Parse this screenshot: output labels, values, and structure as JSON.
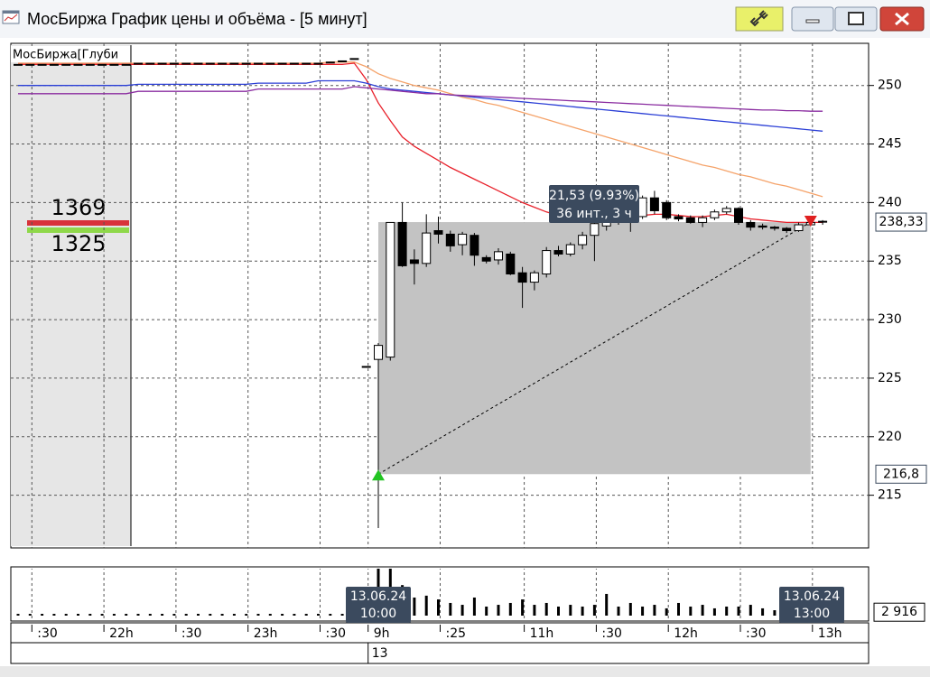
{
  "window": {
    "title": "МосБиржа График цены и объёма - [5 минут]"
  },
  "depth": {
    "label": "МосБиржа[Глуби",
    "ask": "1369",
    "bid": "1325"
  },
  "measure": {
    "change_label": "21,53 (9.93%)",
    "span_label": "36 инт., 3 ч",
    "start": {
      "date": "13.06.24",
      "time": "10:00"
    },
    "end": {
      "date": "13.06.24",
      "time": "13:00"
    }
  },
  "chart_data": {
    "type": "candlestick",
    "categories": [
      null,
      ":30",
      null,
      null,
      null,
      null,
      null,
      "22h",
      null,
      null,
      null,
      null,
      null,
      ":30",
      null,
      null,
      null,
      null,
      null,
      "23h",
      null,
      null,
      null,
      null,
      null,
      ":30",
      null,
      null,
      null,
      "9h",
      null,
      null,
      null,
      null,
      null,
      ":25",
      null,
      null,
      null,
      null,
      null,
      null,
      "11h",
      null,
      null,
      null,
      null,
      null,
      ":30",
      null,
      null,
      null,
      null,
      null,
      "12h",
      null,
      null,
      null,
      null,
      null,
      ":30",
      null,
      null,
      null,
      null,
      null,
      "13h",
      null
    ],
    "dates": [
      null,
      null,
      null,
      null,
      null,
      null,
      null,
      null,
      null,
      null,
      null,
      null,
      null,
      null,
      null,
      null,
      null,
      null,
      null,
      null,
      null,
      null,
      null,
      null,
      null,
      null,
      null,
      null,
      null,
      "13",
      null,
      null,
      null,
      null,
      null,
      null,
      null,
      null,
      null,
      null,
      null,
      null,
      null,
      null,
      null,
      null,
      null,
      null,
      null,
      null,
      null,
      null,
      null,
      null,
      null,
      null,
      null,
      null,
      null,
      null,
      null,
      null,
      null,
      null,
      null,
      null,
      null,
      null
    ],
    "open": [
      251.8,
      251.8,
      251.8,
      251.8,
      251.8,
      251.8,
      251.8,
      251.8,
      251.8,
      251.8,
      251.9,
      251.9,
      251.9,
      251.9,
      251.9,
      251.9,
      251.9,
      251.9,
      251.9,
      251.9,
      251.9,
      251.9,
      251.9,
      251.9,
      251.9,
      251.9,
      252.0,
      252.1,
      252.3,
      226.0,
      226.6,
      226.8,
      238.3,
      235.1,
      234.8,
      237.6,
      237.3,
      236.4,
      237.2,
      235.3,
      235.1,
      235.6,
      234.0,
      233.2,
      233.9,
      235.9,
      235.6,
      236.4,
      237.2,
      238.0,
      238.6,
      239.1,
      238.8,
      240.4,
      240.0,
      238.8,
      238.7,
      238.3,
      238.7,
      239.2,
      239.5,
      238.3,
      238.0,
      237.9,
      237.8,
      237.6,
      238.1,
      238.4
    ],
    "high": [
      251.8,
      251.8,
      251.8,
      251.8,
      251.8,
      251.8,
      251.8,
      251.8,
      251.8,
      251.8,
      251.9,
      251.9,
      251.9,
      251.9,
      251.9,
      251.9,
      251.9,
      251.9,
      251.9,
      251.9,
      251.9,
      251.9,
      251.9,
      251.9,
      251.9,
      251.9,
      252.0,
      252.1,
      252.3,
      226.0,
      228.0,
      238.3,
      240.0,
      236.0,
      239.0,
      238.8,
      237.6,
      237.5,
      237.4,
      235.5,
      236.1,
      235.8,
      234.5,
      234.2,
      236.2,
      236.3,
      236.6,
      237.5,
      238.5,
      238.9,
      239.4,
      239.5,
      240.6,
      241.0,
      240.2,
      239.0,
      238.9,
      238.9,
      239.4,
      239.7,
      239.6,
      238.5,
      238.2,
      238.0,
      237.9,
      238.3,
      238.5,
      238.5
    ],
    "low": [
      251.8,
      251.8,
      251.8,
      251.8,
      251.8,
      251.8,
      251.8,
      251.8,
      251.8,
      251.8,
      251.9,
      251.9,
      251.9,
      251.9,
      251.9,
      251.9,
      251.9,
      251.9,
      251.9,
      251.9,
      251.9,
      251.9,
      251.9,
      251.9,
      251.9,
      251.9,
      252.0,
      252.1,
      252.3,
      226.0,
      212.2,
      226.5,
      234.5,
      233.0,
      234.5,
      236.5,
      235.8,
      235.5,
      234.6,
      234.8,
      234.7,
      233.8,
      231.0,
      232.5,
      233.6,
      235.4,
      235.4,
      236.0,
      235.0,
      237.6,
      238.1,
      237.5,
      238.6,
      239.0,
      238.5,
      238.4,
      238.2,
      237.9,
      238.5,
      239.0,
      238.1,
      237.6,
      237.7,
      237.6,
      237.4,
      237.5,
      238.0,
      238.1
    ],
    "close": [
      251.8,
      251.8,
      251.8,
      251.8,
      251.8,
      251.8,
      251.8,
      251.8,
      251.8,
      251.8,
      251.9,
      251.9,
      251.9,
      251.9,
      251.9,
      251.9,
      251.9,
      251.9,
      251.9,
      251.9,
      251.9,
      251.9,
      251.9,
      251.9,
      251.9,
      251.9,
      252.0,
      252.1,
      252.3,
      226.0,
      227.8,
      238.3,
      234.6,
      234.8,
      237.4,
      237.3,
      236.3,
      237.3,
      235.5,
      235.0,
      235.8,
      233.9,
      233.2,
      234.0,
      235.9,
      235.6,
      236.4,
      237.2,
      238.2,
      238.6,
      239.1,
      238.6,
      240.4,
      239.3,
      238.7,
      238.6,
      238.3,
      238.7,
      239.2,
      239.5,
      238.3,
      237.9,
      237.9,
      237.8,
      237.6,
      238.1,
      238.3,
      238.33
    ],
    "up_color": "#ffffff",
    "down_color": "#000000",
    "series": [
      {
        "color": "#f5a36a",
        "values": [
          251.9,
          251.9,
          251.9,
          251.9,
          251.9,
          251.9,
          251.9,
          251.9,
          251.9,
          251.9,
          251.9,
          251.9,
          251.9,
          251.9,
          251.9,
          251.9,
          251.9,
          251.9,
          251.9,
          251.9,
          251.9,
          251.9,
          251.9,
          251.9,
          251.9,
          251.9,
          252.0,
          252.0,
          252.0,
          251.6,
          251.0,
          250.6,
          250.3,
          250.0,
          249.8,
          249.6,
          249.3,
          249.0,
          248.8,
          248.5,
          248.3,
          248.0,
          247.7,
          247.4,
          247.1,
          246.8,
          246.5,
          246.2,
          245.9,
          245.6,
          245.3,
          245.0,
          244.7,
          244.4,
          244.1,
          243.8,
          243.5,
          243.2,
          243.0,
          242.7,
          242.4,
          242.2,
          241.9,
          241.6,
          241.4,
          241.1,
          240.8,
          240.5
        ]
      },
      {
        "color": "#e8202a",
        "values": [
          251.8,
          251.8,
          251.8,
          251.8,
          251.8,
          251.8,
          251.8,
          251.8,
          251.8,
          251.8,
          251.8,
          251.8,
          251.8,
          251.8,
          251.8,
          251.8,
          251.8,
          251.8,
          251.8,
          251.8,
          251.8,
          251.8,
          251.8,
          251.8,
          251.8,
          251.8,
          251.8,
          251.8,
          251.9,
          250.5,
          248.5,
          247.0,
          245.6,
          244.8,
          244.2,
          243.6,
          243.0,
          242.5,
          242.0,
          241.5,
          241.0,
          240.5,
          240.0,
          239.6,
          239.2,
          238.9,
          238.7,
          238.6,
          238.5,
          238.5,
          238.6,
          238.7,
          238.9,
          239.0,
          239.0,
          238.9,
          238.8,
          238.8,
          238.9,
          239.0,
          238.8,
          238.6,
          238.5,
          238.4,
          238.3,
          238.3,
          238.3,
          238.3
        ]
      },
      {
        "color": "#2b3fd6",
        "values": [
          250.0,
          250.0,
          250.0,
          250.0,
          250.0,
          250.0,
          250.0,
          250.0,
          250.0,
          250.0,
          250.1,
          250.1,
          250.1,
          250.1,
          250.1,
          250.1,
          250.1,
          250.1,
          250.1,
          250.1,
          250.2,
          250.2,
          250.2,
          250.2,
          250.2,
          250.4,
          250.4,
          250.4,
          250.4,
          250.2,
          249.9,
          249.7,
          249.6,
          249.5,
          249.4,
          249.3,
          249.2,
          249.1,
          249.0,
          248.9,
          248.8,
          248.7,
          248.6,
          248.5,
          248.4,
          248.3,
          248.2,
          248.1,
          248.0,
          247.9,
          247.8,
          247.7,
          247.6,
          247.5,
          247.4,
          247.3,
          247.2,
          247.1,
          247.0,
          246.9,
          246.8,
          246.7,
          246.6,
          246.5,
          246.4,
          246.3,
          246.2,
          246.1
        ]
      },
      {
        "color": "#8a2ca0",
        "values": [
          249.3,
          249.3,
          249.3,
          249.3,
          249.3,
          249.3,
          249.3,
          249.3,
          249.3,
          249.3,
          249.5,
          249.5,
          249.5,
          249.5,
          249.5,
          249.5,
          249.5,
          249.5,
          249.5,
          249.5,
          249.7,
          249.7,
          249.7,
          249.7,
          249.7,
          249.7,
          249.7,
          249.7,
          249.9,
          249.8,
          249.7,
          249.6,
          249.5,
          249.4,
          249.3,
          249.3,
          249.2,
          249.15,
          249.1,
          249.05,
          249.0,
          248.95,
          248.9,
          248.85,
          248.8,
          248.75,
          248.7,
          248.65,
          248.6,
          248.55,
          248.5,
          248.45,
          248.4,
          248.35,
          248.3,
          248.25,
          248.2,
          248.15,
          248.1,
          248.05,
          248.0,
          247.95,
          247.9,
          247.9,
          247.85,
          247.85,
          247.8,
          247.8
        ]
      }
    ],
    "ylim": [
      210.5,
      253.6
    ],
    "yticks": [
      215,
      220,
      225,
      230,
      235,
      240,
      245,
      250
    ],
    "grid": true,
    "price_markers": [
      {
        "value": 238.33,
        "label": "238,33"
      },
      {
        "value": 216.8,
        "label": "216,8"
      }
    ],
    "volume": {
      "color": "#000000",
      "values": [
        1500,
        1500,
        1500,
        1500,
        1500,
        1500,
        1500,
        1500,
        1500,
        1500,
        1500,
        1500,
        1500,
        1500,
        1500,
        1500,
        1500,
        1500,
        1500,
        1500,
        1500,
        1500,
        1500,
        1500,
        1500,
        1500,
        1500,
        1500,
        1500,
        1500,
        60000,
        60000,
        26000,
        15400,
        17000,
        13800,
        10800,
        9200,
        15400,
        7700,
        9200,
        10800,
        13800,
        9200,
        10800,
        7700,
        9200,
        7700,
        9200,
        18500,
        7700,
        10800,
        7700,
        9200,
        6200,
        10800,
        7700,
        9200,
        6200,
        7700,
        7700,
        9200,
        6200,
        4600,
        4600,
        6200,
        4600,
        2916
      ],
      "ylim": [
        0,
        40000
      ],
      "yticks": [
        {
          "value": 2916,
          "label": "2 916"
        }
      ]
    }
  }
}
